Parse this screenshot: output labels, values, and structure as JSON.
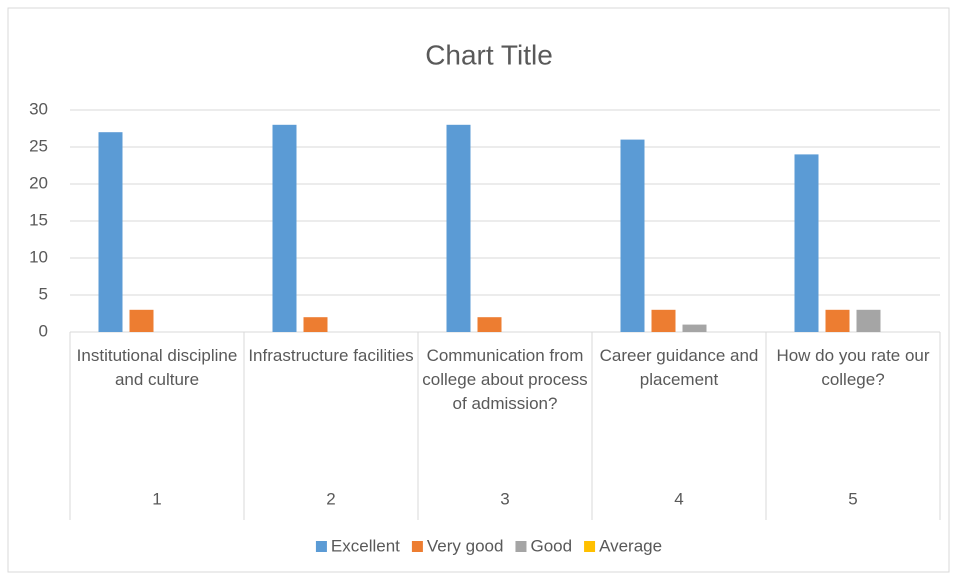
{
  "chart_data": {
    "type": "bar",
    "title": "Chart Title",
    "categories": [
      "Institutional discipline and culture",
      "Infrastructure facilities",
      "Communication from college about process of admission?",
      "Career guidance and placement",
      "How do you rate our college?"
    ],
    "category_numbers": [
      "1",
      "2",
      "3",
      "4",
      "5"
    ],
    "series": [
      {
        "name": "Excellent",
        "color": "#5b9bd5",
        "values": [
          27,
          28,
          28,
          26,
          24
        ]
      },
      {
        "name": "Very good",
        "color": "#ed7d31",
        "values": [
          3,
          2,
          2,
          3,
          3
        ]
      },
      {
        "name": "Good",
        "color": "#a5a5a5",
        "values": [
          0,
          0,
          0,
          1,
          3
        ]
      },
      {
        "name": "Average",
        "color": "#ffc000",
        "values": [
          0,
          0,
          0,
          0,
          0
        ]
      }
    ],
    "ylim": [
      0,
      30
    ],
    "yticks": [
      0,
      5,
      10,
      15,
      20,
      25,
      30
    ],
    "grid": true,
    "legend": "bottom"
  }
}
